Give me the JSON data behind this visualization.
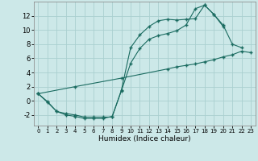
{
  "background_color": "#cce8e8",
  "grid_color": "#aad0d0",
  "line_color": "#1a6b60",
  "xlabel": "Humidex (Indice chaleur)",
  "xlim": [
    -0.5,
    23.5
  ],
  "ylim": [
    -3.5,
    14.0
  ],
  "xticks": [
    0,
    1,
    2,
    3,
    4,
    5,
    6,
    7,
    8,
    9,
    10,
    11,
    12,
    13,
    14,
    15,
    16,
    17,
    18,
    19,
    20,
    21,
    22,
    23
  ],
  "yticks": [
    -2,
    0,
    2,
    4,
    6,
    8,
    10,
    12
  ],
  "line1_x": [
    0,
    1,
    2,
    3,
    4,
    5,
    6,
    7,
    8,
    9,
    10,
    11,
    12,
    13,
    14,
    15,
    16,
    17,
    18,
    19,
    20
  ],
  "line1_y": [
    1,
    -0.2,
    -1.5,
    -1.8,
    -2.0,
    -2.3,
    -2.3,
    -2.3,
    -2.3,
    1.5,
    7.5,
    9.3,
    10.5,
    11.3,
    11.5,
    11.4,
    11.5,
    11.6,
    13.5,
    12.2,
    10.5
  ],
  "line2_x": [
    0,
    1,
    2,
    3,
    4,
    5,
    6,
    7,
    8,
    9,
    10,
    11,
    12,
    13,
    14,
    15,
    16,
    17,
    18,
    19,
    20,
    21,
    22
  ],
  "line2_y": [
    1,
    -0.1,
    -1.5,
    -2.0,
    -2.2,
    -2.5,
    -2.5,
    -2.5,
    -2.2,
    1.4,
    5.3,
    7.4,
    8.7,
    9.2,
    9.5,
    9.9,
    10.7,
    13.0,
    13.5,
    12.2,
    10.7,
    8.0,
    7.5
  ],
  "line3_x": [
    0,
    4,
    9,
    14,
    15,
    16,
    17,
    18,
    19,
    20,
    21,
    22,
    23
  ],
  "line3_y": [
    1,
    2.0,
    3.2,
    4.5,
    4.8,
    5.0,
    5.2,
    5.5,
    5.8,
    6.2,
    6.5,
    7.0,
    6.8
  ]
}
